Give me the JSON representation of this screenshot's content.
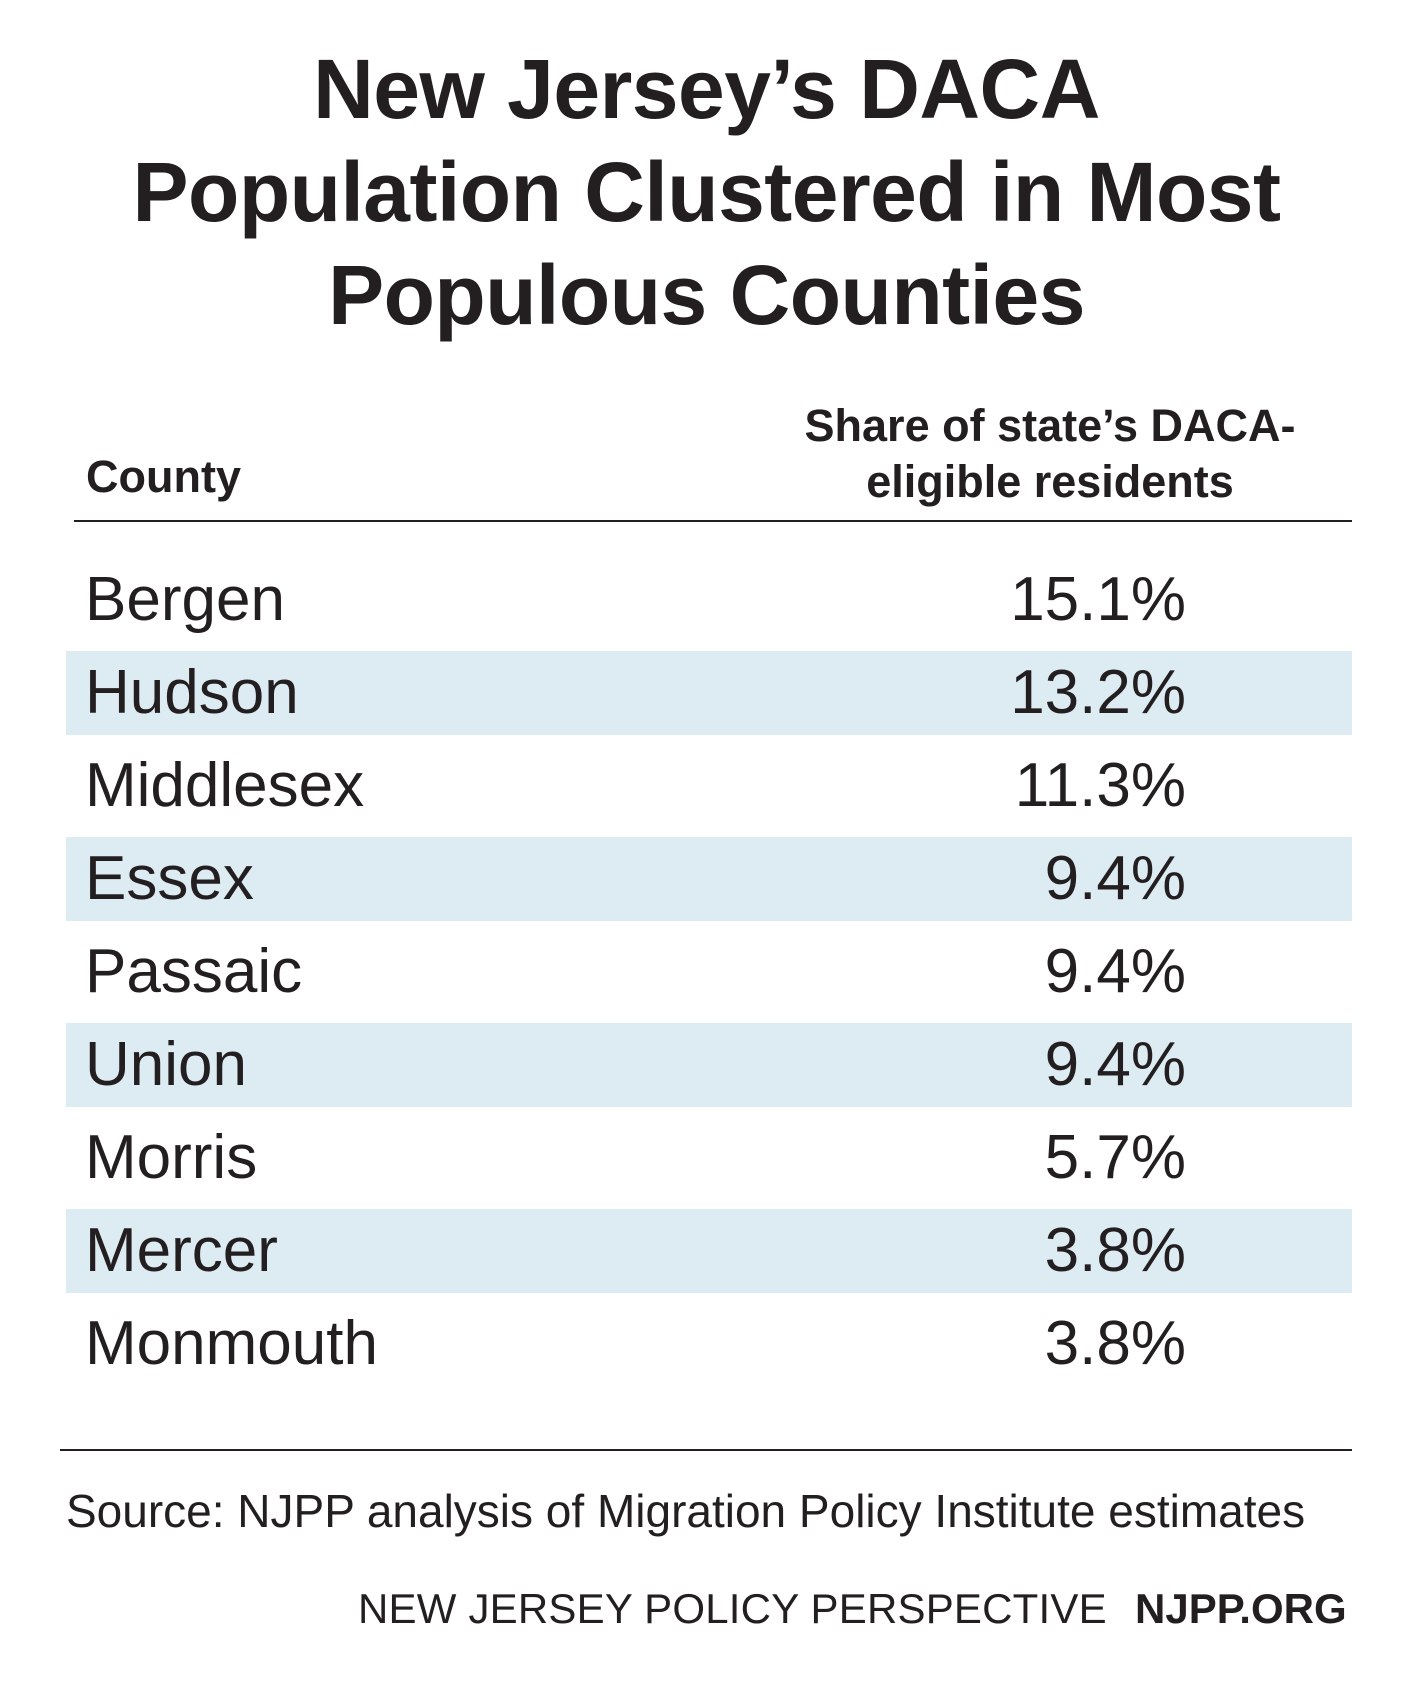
{
  "title_lines": [
    "New Jersey’s DACA",
    "Population Clustered in Most",
    "Populous Counties"
  ],
  "header": {
    "county": "County",
    "share_lines": [
      "Share of state’s DACA-",
      "eligible residents"
    ]
  },
  "source": "Source: NJPP analysis of Migration Policy Institute estimates",
  "footer": {
    "org": "NEW JERSEY POLICY PERSPECTIVE",
    "url": "NJPP.ORG"
  },
  "colors": {
    "text": "#231f20",
    "row_shade": "#ddebf3",
    "background": "#ffffff"
  },
  "chart_data": {
    "type": "table",
    "title": "New Jersey’s DACA Population Clustered in Most Populous Counties",
    "columns": [
      "County",
      "Share of state’s DACA-eligible residents"
    ],
    "rows": [
      {
        "county": "Bergen",
        "value": "15.1%"
      },
      {
        "county": "Hudson",
        "value": "13.2%"
      },
      {
        "county": "Middlesex",
        "value": "11.3%"
      },
      {
        "county": "Essex",
        "value": "9.4%"
      },
      {
        "county": "Passaic",
        "value": "9.4%"
      },
      {
        "county": "Union",
        "value": "9.4%"
      },
      {
        "county": "Morris",
        "value": "5.7%"
      },
      {
        "county": "Mercer",
        "value": "3.8%"
      },
      {
        "county": "Monmouth",
        "value": "3.8%"
      }
    ]
  }
}
